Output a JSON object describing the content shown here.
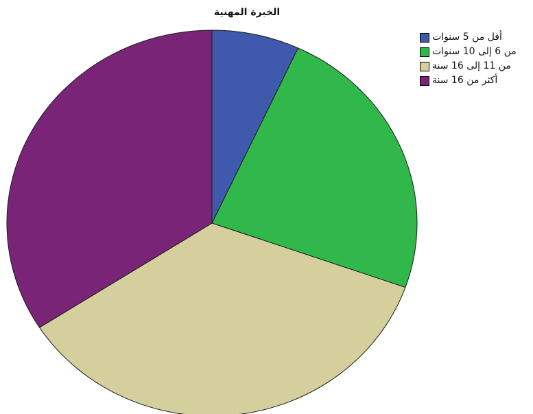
{
  "chart_data": {
    "type": "pie",
    "title": "الخبرة المهنية",
    "legend_position": "top-right",
    "series": [
      {
        "name": "",
        "values": [
          6.9,
          23.5,
          35.5,
          34.1
        ],
        "categories": [
          "أقل من 5 سنوات",
          "من 6 إلى 10 سنوات",
          "من 11 إلى 16 سنة",
          "أكثر من 16 سنة"
        ],
        "colors": [
          "#3f5aac",
          "#31b84a",
          "#d4cf9c",
          "#7a2478"
        ]
      }
    ],
    "labels": [
      "أقل من 5 سنوات",
      "من 6 إلى 10 سنوات",
      "من 11 إلى 16 سنة",
      "أكثر من 16 سنة"
    ],
    "values": [
      6.9,
      23.5,
      35.5,
      34.1
    ],
    "colors": [
      "#3f5aac",
      "#31b84a",
      "#d4cf9c",
      "#7a2478"
    ]
  }
}
